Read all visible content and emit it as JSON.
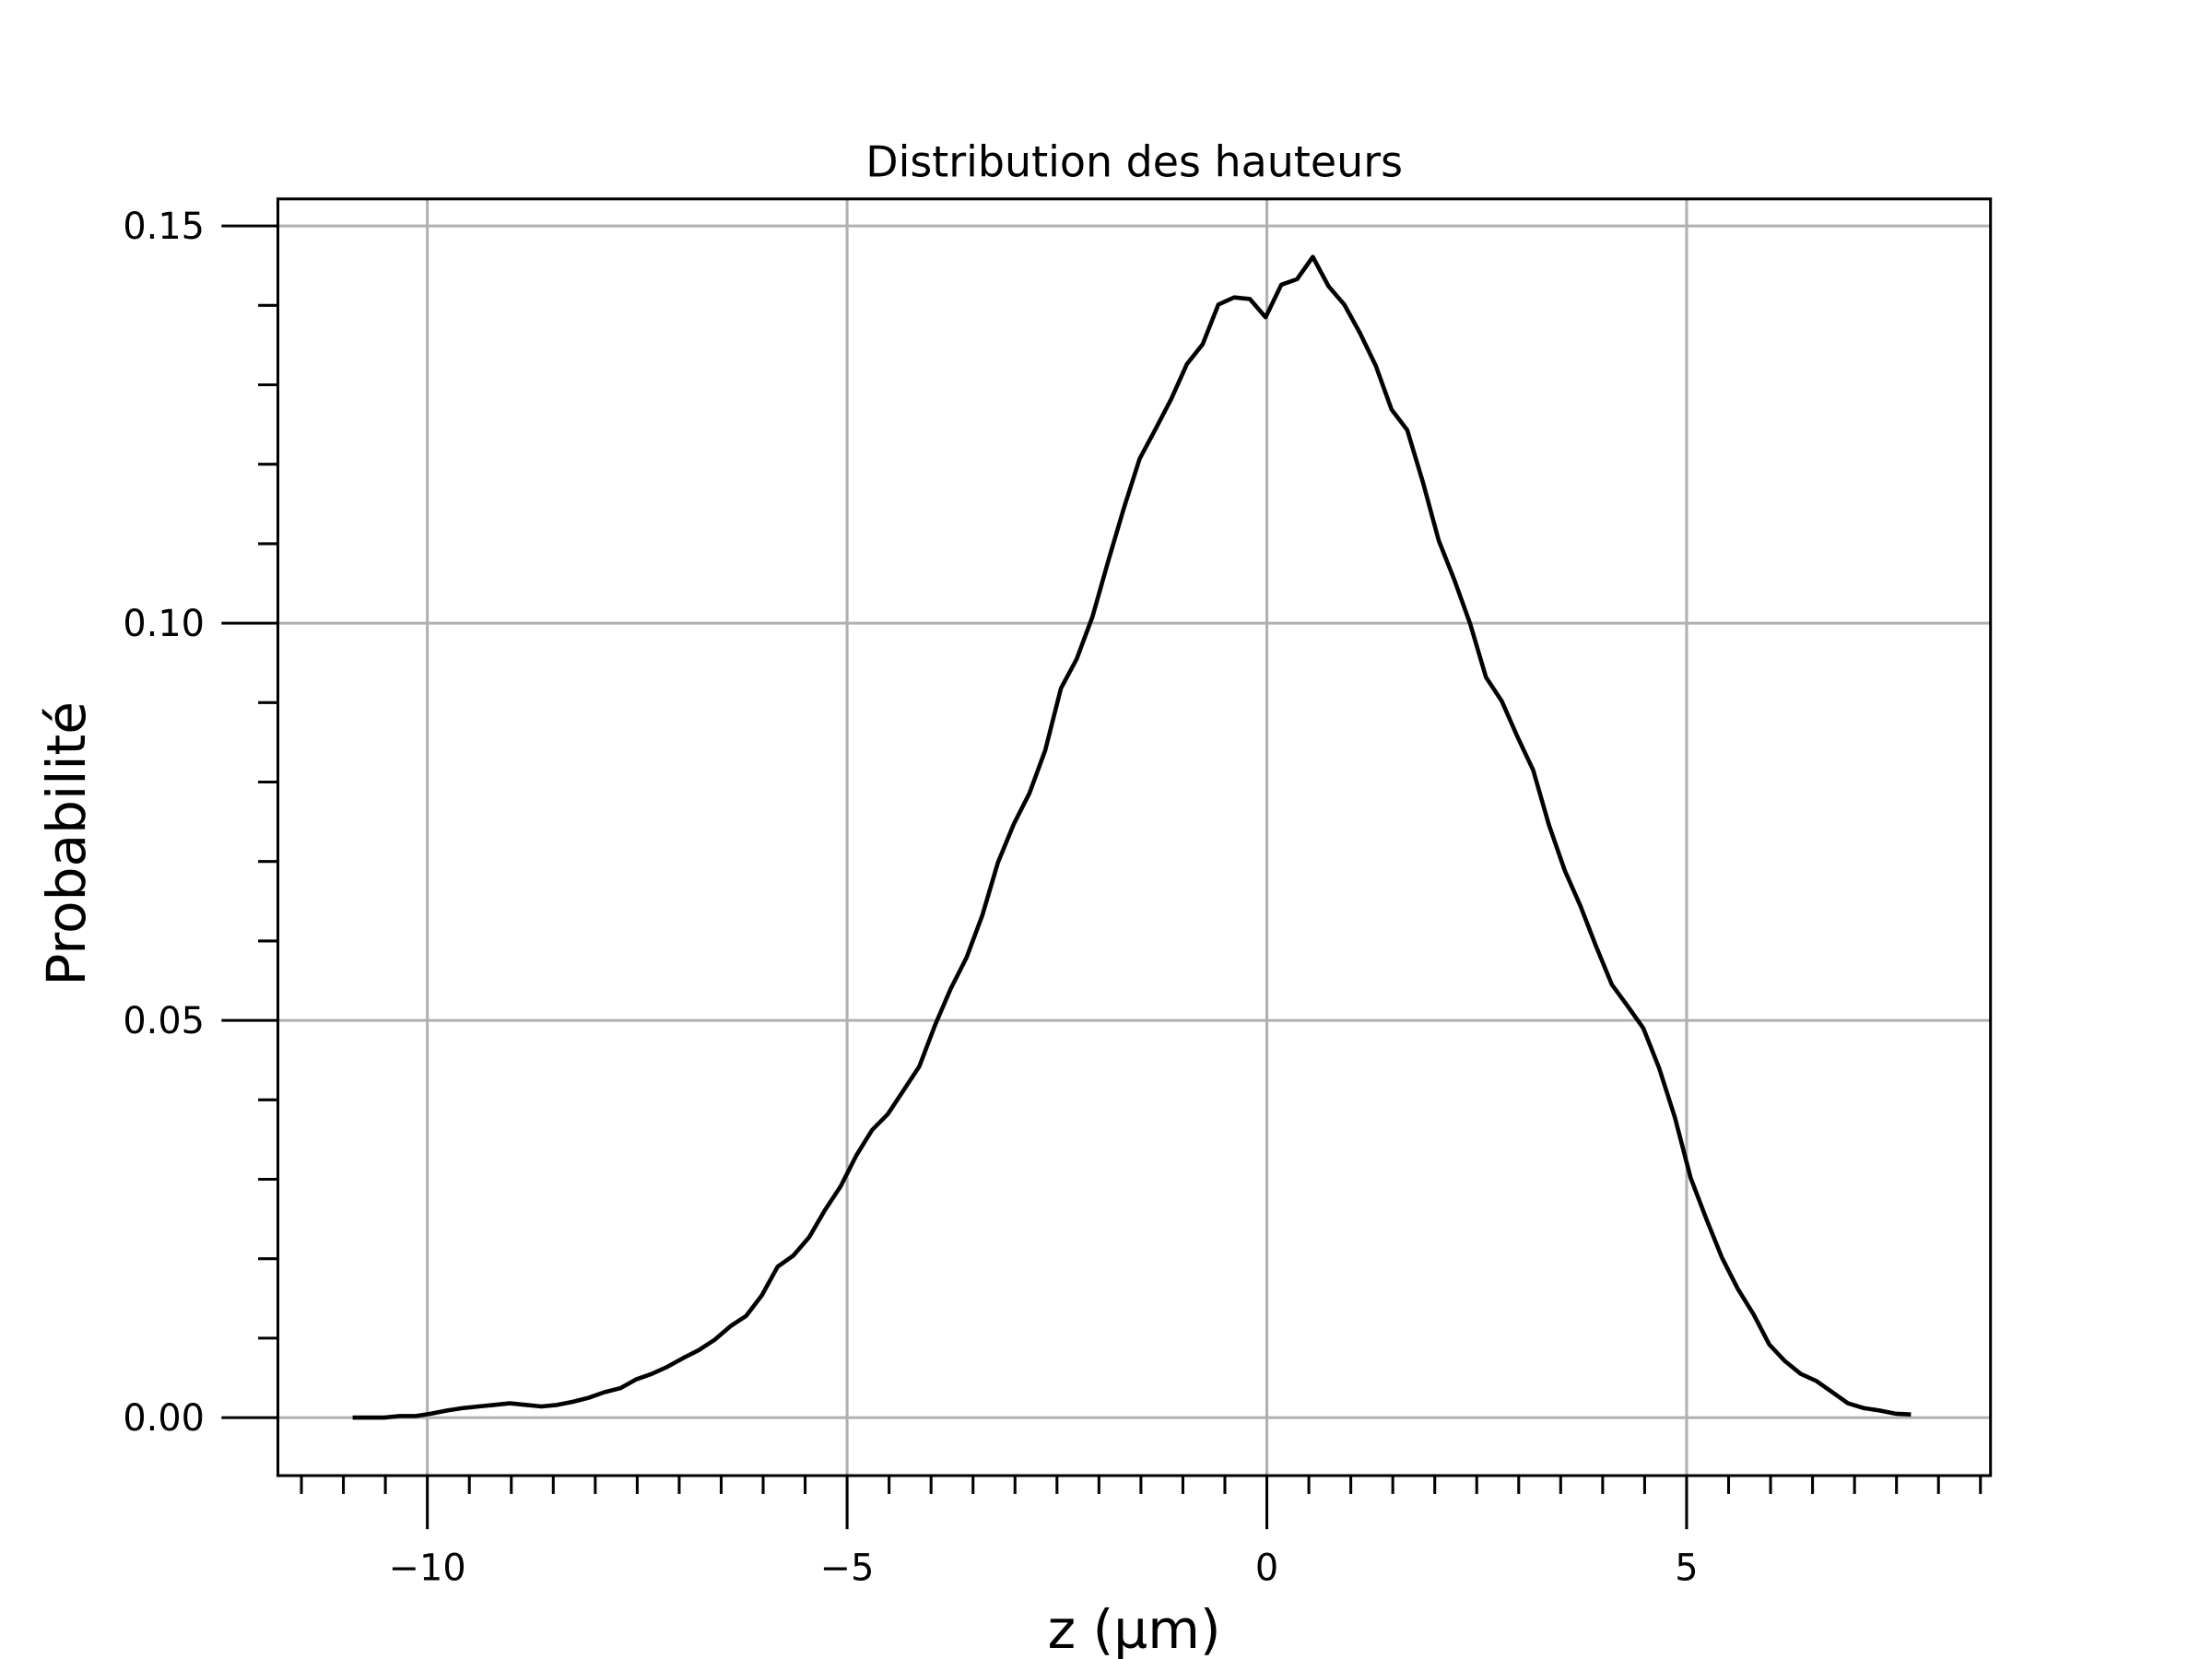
{
  "chart_data": {
    "type": "line",
    "title": "Distribution des hauteurs",
    "xlabel": "z (µm)",
    "ylabel": "Probabilité",
    "x": [
      -10.89,
      -10.7025,
      -10.515,
      -10.3275,
      -10.14,
      -9.9525,
      -9.765,
      -9.5775,
      -9.39,
      -9.2025,
      -9.015,
      -8.8275,
      -8.64,
      -8.4525,
      -8.265,
      -8.0775,
      -7.89,
      -7.7025,
      -7.515,
      -7.3275,
      -7.14,
      -6.9525,
      -6.765,
      -6.5775,
      -6.39,
      -6.2025,
      -6.015,
      -5.8275,
      -5.64,
      -5.4525,
      -5.265,
      -5.0775,
      -4.89,
      -4.7025,
      -4.515,
      -4.3275,
      -4.14,
      -3.9525,
      -3.765,
      -3.5775,
      -3.39,
      -3.2025,
      -3.015,
      -2.8275,
      -2.64,
      -2.4525,
      -2.265,
      -2.0775,
      -1.89,
      -1.7025,
      -1.515,
      -1.3275,
      -1.14,
      -0.9525,
      -0.765,
      -0.5775,
      -0.39,
      -0.2025,
      -0.015,
      0.1725,
      0.36,
      0.5475,
      0.735,
      0.9225,
      1.11,
      1.2975,
      1.485,
      1.6725,
      1.86,
      2.0475,
      2.235,
      2.4225,
      2.61,
      2.7975,
      2.985,
      3.1725,
      3.36,
      3.5475,
      3.735,
      3.9225,
      4.11,
      4.2975,
      4.485,
      4.6725,
      4.86,
      5.0475,
      5.235,
      5.4225,
      5.61,
      5.7975,
      5.985,
      6.1725,
      6.36,
      6.5475,
      6.735,
      6.9225,
      7.11,
      7.2975,
      7.485,
      7.6725
    ],
    "series": [
      {
        "color": "#000000",
        "values": [
          0,
          0,
          0,
          0.0002,
          0.0002,
          0.0005,
          0.0009,
          0.0012,
          0.0014,
          0.0016,
          0.0018,
          0.0016,
          0.0014,
          0.0016,
          0.002,
          0.0025,
          0.0032,
          0.0037,
          0.0048,
          0.0055,
          0.0064,
          0.0075,
          0.0085,
          0.0098,
          0.0115,
          0.0128,
          0.0154,
          0.019,
          0.0204,
          0.0227,
          0.0261,
          0.0291,
          0.033,
          0.0362,
          0.0382,
          0.0412,
          0.0442,
          0.0494,
          0.054,
          0.0579,
          0.0632,
          0.0699,
          0.0747,
          0.0786,
          0.084,
          0.0918,
          0.0955,
          0.1008,
          0.1078,
          0.1145,
          0.1207,
          0.1244,
          0.1282,
          0.1326,
          0.1351,
          0.1401,
          0.141,
          0.1408,
          0.1385,
          0.1426,
          0.1433,
          0.1461,
          0.1424,
          0.1401,
          0.1365,
          0.1324,
          0.1269,
          0.1243,
          0.1177,
          0.1104,
          0.1054,
          0.0999,
          0.0932,
          0.0902,
          0.0857,
          0.0815,
          0.0746,
          0.0689,
          0.0644,
          0.0593,
          0.0545,
          0.0518,
          0.049,
          0.044,
          0.0378,
          0.0302,
          0.025,
          0.0201,
          0.0162,
          0.013,
          0.0092,
          0.0071,
          0.0055,
          0.0046,
          0.0032,
          0.0018,
          0.0012,
          0.0009,
          0.0005,
          0.0004
        ]
      }
    ],
    "xlim": [
      -11.78,
      8.62
    ],
    "ylim": [
      -0.0073,
      0.1534
    ],
    "xticks": [
      {
        "value": -10,
        "label": "−10"
      },
      {
        "value": -5,
        "label": "−5"
      },
      0,
      5
    ],
    "yticks": [
      {
        "value": 0,
        "label": "0.00"
      },
      {
        "value": 0.05,
        "label": "0.05"
      },
      {
        "value": 0.1,
        "label": "0.10"
      },
      {
        "value": 0.15,
        "label": "0.15"
      }
    ],
    "xminorticks": [
      -11.5,
      -11,
      -10.5,
      -9.5,
      -9,
      -8.5,
      -8,
      -7.5,
      -7,
      -6.5,
      -6,
      -5.5,
      -4.5,
      -4,
      -3.5,
      -3,
      -2.5,
      -2,
      -1.5,
      -1,
      -0.5,
      0.5,
      1,
      1.5,
      2,
      2.5,
      3,
      3.5,
      4,
      4.5,
      5.5,
      6,
      6.5,
      7,
      7.5,
      8,
      8.5
    ],
    "yminorticks": [
      0.01,
      0.02,
      0.03,
      0.04,
      0.06,
      0.07,
      0.08,
      0.09,
      0.11,
      0.12,
      0.13,
      0.14
    ],
    "grid": true
  }
}
